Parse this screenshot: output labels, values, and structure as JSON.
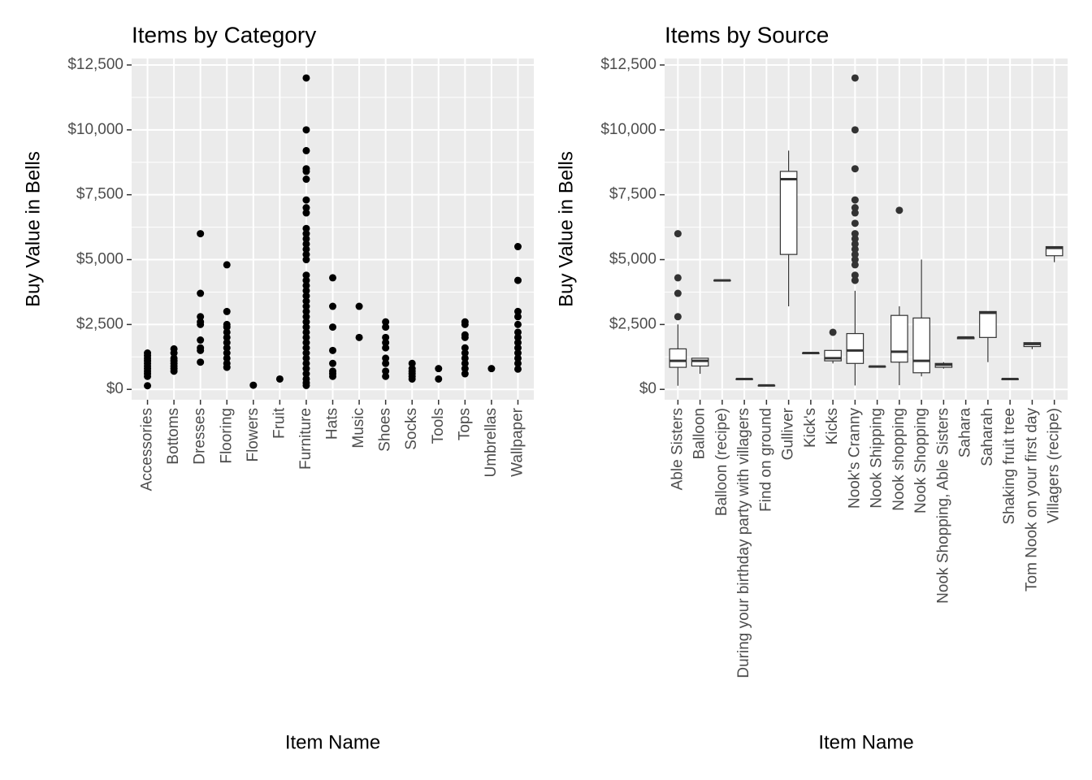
{
  "chart_data": [
    {
      "type": "strip",
      "title": "Items by Category",
      "x_label": "Item Name",
      "y_label": "Buy Value in Bells",
      "color": "#000000",
      "grid": true,
      "ylim": [
        -400,
        12750
      ],
      "yticks": [
        {
          "value": 0,
          "label": "$0"
        },
        {
          "value": 2500,
          "label": "$2,500"
        },
        {
          "value": 5000,
          "label": "$5,000"
        },
        {
          "value": 7500,
          "label": "$7,500"
        },
        {
          "value": 10000,
          "label": "$10,000"
        },
        {
          "value": 12500,
          "label": "$12,500"
        }
      ],
      "categories": [
        "Accessories",
        "Bottoms",
        "Dresses",
        "Flooring",
        "Flowers",
        "Fruit",
        "Furniture",
        "Hats",
        "Music",
        "Shoes",
        "Socks",
        "Tools",
        "Tops",
        "Umbrellas",
        "Wallpaper"
      ],
      "values": [
        [
          140,
          500,
          600,
          700,
          800,
          900,
          1000,
          1100,
          1200,
          1300,
          1400
        ],
        [
          700,
          800,
          900,
          1000,
          1100,
          1200,
          1400,
          1560
        ],
        [
          1050,
          1500,
          1600,
          1900,
          2500,
          2600,
          2800,
          3700,
          6000
        ],
        [
          850,
          1000,
          1200,
          1400,
          1600,
          1800,
          2000,
          2200,
          2400,
          2500,
          3000,
          4800
        ],
        [
          160
        ],
        [
          400
        ],
        [
          150,
          250,
          400,
          600,
          800,
          1000,
          1200,
          1400,
          1600,
          1800,
          2000,
          2200,
          2400,
          2600,
          2800,
          3000,
          3200,
          3400,
          3600,
          3800,
          4000,
          4200,
          4400,
          5000,
          5200,
          5400,
          5600,
          5800,
          6000,
          6200,
          6800,
          7000,
          7300,
          8100,
          8400,
          8500,
          9200,
          10000,
          12000
        ],
        [
          500,
          600,
          700,
          1000,
          1500,
          2400,
          3200,
          4300
        ],
        [
          2000,
          3200
        ],
        [
          500,
          700,
          1000,
          1200,
          1600,
          1800,
          2000,
          2400,
          2600
        ],
        [
          400,
          500,
          600,
          700,
          800,
          1000
        ],
        [
          400,
          800
        ],
        [
          600,
          800,
          1000,
          1200,
          1400,
          1600,
          2000,
          2100,
          2500,
          2600
        ],
        [
          800
        ],
        [
          780,
          1000,
          1200,
          1400,
          1600,
          1800,
          2000,
          2200,
          2500,
          2800,
          3000,
          4200,
          5500
        ]
      ]
    },
    {
      "type": "box",
      "title": "Items by Source",
      "x_label": "Item Name",
      "y_label": "Buy Value in Bells",
      "color": "#333333",
      "grid": true,
      "ylim": [
        -400,
        12750
      ],
      "yticks": [
        {
          "value": 0,
          "label": "$0"
        },
        {
          "value": 2500,
          "label": "$2,500"
        },
        {
          "value": 5000,
          "label": "$5,000"
        },
        {
          "value": 7500,
          "label": "$7,500"
        },
        {
          "value": 10000,
          "label": "$10,000"
        },
        {
          "value": 12500,
          "label": "$12,500"
        }
      ],
      "categories": [
        "Able Sisters",
        "Balloon",
        "Balloon (recipe)",
        "During your birthday party with villagers",
        "Find on ground",
        "Gulliver",
        "Kick's",
        "Kicks",
        "Nook's Cranny",
        "Nook Shipping",
        "Nook shopping",
        "Nook Shopping",
        "Nook Shopping, Able Sisters",
        "Sahara",
        "Saharah",
        "Shaking fruit tree",
        "Tom Nook on your first day",
        "Villagers (recipe)"
      ],
      "boxes": [
        {
          "min": 140,
          "q1": 850,
          "median": 1100,
          "q3": 1560,
          "max": 2500,
          "outliers": [
            2800,
            3700,
            4300,
            6000
          ]
        },
        {
          "min": 600,
          "q1": 900,
          "median": 1100,
          "q3": 1200,
          "max": 1200,
          "outliers": []
        },
        {
          "min": 4200,
          "q1": 4200,
          "median": 4200,
          "q3": 4200,
          "max": 4200,
          "outliers": []
        },
        {
          "min": 400,
          "q1": 400,
          "median": 400,
          "q3": 400,
          "max": 400,
          "outliers": []
        },
        {
          "min": 150,
          "q1": 150,
          "median": 150,
          "q3": 150,
          "max": 150,
          "outliers": []
        },
        {
          "min": 3200,
          "q1": 5200,
          "median": 8100,
          "q3": 8400,
          "max": 9200,
          "outliers": []
        },
        {
          "min": 1400,
          "q1": 1400,
          "median": 1400,
          "q3": 1400,
          "max": 1400,
          "outliers": []
        },
        {
          "min": 1000,
          "q1": 1100,
          "median": 1200,
          "q3": 1500,
          "max": 1500,
          "outliers": [
            2200
          ]
        },
        {
          "min": 150,
          "q1": 1000,
          "median": 1500,
          "q3": 2150,
          "max": 3800,
          "outliers": [
            4200,
            4400,
            4800,
            5000,
            5200,
            5400,
            5600,
            5800,
            6000,
            6400,
            6800,
            7000,
            7300,
            8500,
            10000,
            12000
          ]
        },
        {
          "min": 880,
          "q1": 880,
          "median": 880,
          "q3": 880,
          "max": 880,
          "outliers": []
        },
        {
          "min": 160,
          "q1": 1050,
          "median": 1450,
          "q3": 2850,
          "max": 3200,
          "outliers": [
            6900
          ]
        },
        {
          "min": 500,
          "q1": 640,
          "median": 1100,
          "q3": 2750,
          "max": 5000,
          "outliers": []
        },
        {
          "min": 800,
          "q1": 850,
          "median": 950,
          "q3": 1000,
          "max": 1050,
          "outliers": []
        },
        {
          "min": 1950,
          "q1": 1950,
          "median": 2000,
          "q3": 2000,
          "max": 2000,
          "outliers": []
        },
        {
          "min": 1050,
          "q1": 2000,
          "median": 2950,
          "q3": 3000,
          "max": 3000,
          "outliers": []
        },
        {
          "min": 400,
          "q1": 400,
          "median": 400,
          "q3": 400,
          "max": 400,
          "outliers": []
        },
        {
          "min": 1550,
          "q1": 1650,
          "median": 1750,
          "q3": 1800,
          "max": 1800,
          "outliers": []
        },
        {
          "min": 4900,
          "q1": 5150,
          "median": 5450,
          "q3": 5500,
          "max": 5500,
          "outliers": []
        }
      ]
    }
  ]
}
